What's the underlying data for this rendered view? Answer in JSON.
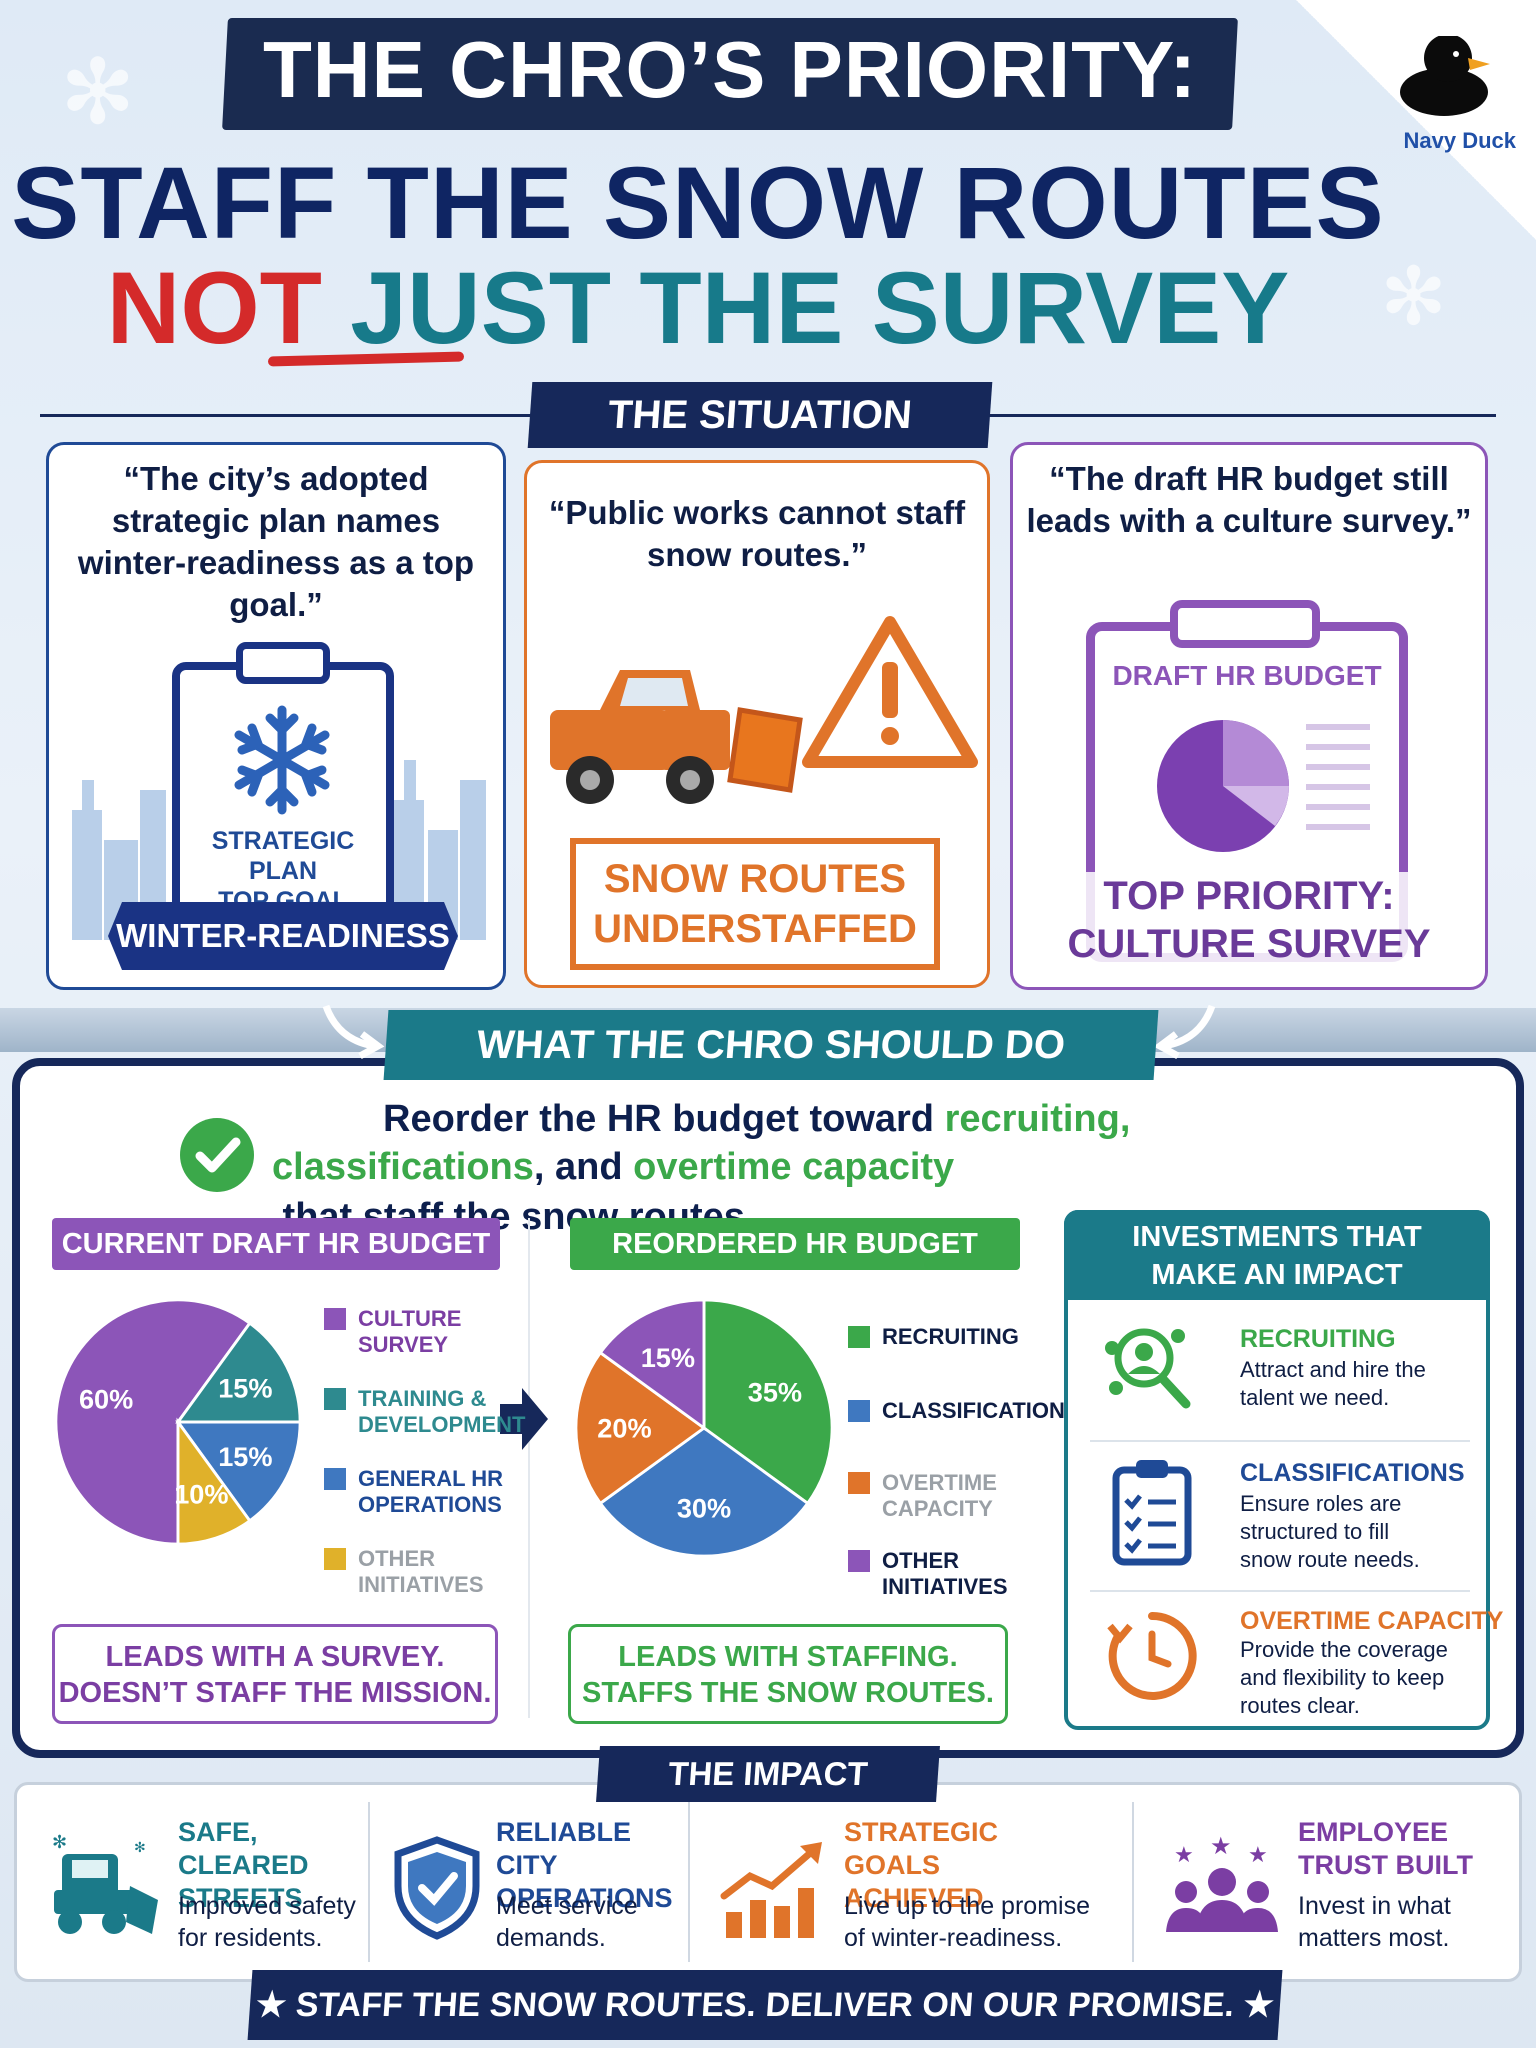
{
  "header": {
    "line1": "THE CHRO’S PRIORITY:",
    "line2": "STAFF THE SNOW ROUTES",
    "line3_not": "NOT",
    "line3_rest": " JUST THE SURVEY",
    "brand": "Navy Duck"
  },
  "situation": {
    "label": "THE SITUATION",
    "card1": {
      "quote": "“The city’s adopted strategic plan names winter-readiness as a top goal.”",
      "clip_line1": "STRATEGIC PLAN",
      "clip_line2": "TOP GOAL",
      "banner": "WINTER-READINESS"
    },
    "card2": {
      "quote": "“Public works cannot staff snow routes.”",
      "box_line1": "SNOW ROUTES",
      "box_line2": "UNDERSTAFFED"
    },
    "card3": {
      "quote": "“The draft HR budget still leads with a culture survey.”",
      "clip_title": "DRAFT HR BUDGET",
      "priority_line1": "TOP PRIORITY:",
      "priority_line2": "CULTURE SURVEY"
    }
  },
  "action": {
    "label": "WHAT THE CHRO SHOULD DO",
    "line1_a": "Reorder the HR budget toward ",
    "line1_b": "recruiting,",
    "line2_a": "classifications",
    "line2_b": ", and ",
    "line2_c": "overtime capacity",
    "line2_d": " that staff the snow routes.",
    "current": {
      "title": "CURRENT DRAFT HR BUDGET",
      "tag_line1": "LEADS WITH A SURVEY.",
      "tag_line2": "DOESN’T STAFF THE MISSION."
    },
    "reordered": {
      "title": "REORDERED HR BUDGET",
      "tag_line1": "LEADS WITH STAFFING.",
      "tag_line2": "STAFFS THE SNOW ROUTES."
    },
    "investments": {
      "title_line1": "INVESTMENTS THAT",
      "title_line2": "MAKE AN IMPACT",
      "items": [
        {
          "title": "RECRUITING",
          "desc": "Attract and hire the talent we need.",
          "color": "#3ba84a",
          "icon": "recruiting-icon"
        },
        {
          "title": "CLASSIFICATIONS",
          "desc": "Ensure roles are structured to fill snow route needs.",
          "color": "#1f4a96",
          "icon": "clipboard-checklist-icon"
        },
        {
          "title": "OVERTIME CAPACITY",
          "desc": "Provide the coverage and flexibility to keep routes clear.",
          "color": "#e0742a",
          "icon": "clock-icon"
        }
      ]
    }
  },
  "chart_data": [
    {
      "type": "pie",
      "title": "CURRENT DRAFT HR BUDGET",
      "categories": [
        "CULTURE SURVEY",
        "TRAINING & DEVELOPMENT",
        "GENERAL HR OPERATIONS",
        "OTHER INITIATIVES"
      ],
      "values": [
        60,
        15,
        15,
        10
      ],
      "value_labels": [
        "60%",
        "15%",
        "15%",
        "10%"
      ],
      "colors": [
        "#8c55b8",
        "#2e8a8f",
        "#3f78c0",
        "#e0b12a"
      ],
      "legend_colors": [
        "#8c55b8",
        "#2e8a8f",
        "#3f78c0",
        "#e0b12a"
      ],
      "legend_text_colors": [
        "#7b3ea3",
        "#2e8a8f",
        "#1f4a96",
        "#9aa0a6"
      ],
      "legend": "right"
    },
    {
      "type": "pie",
      "title": "REORDERED HR BUDGET",
      "categories": [
        "RECRUITING",
        "CLASSIFICATIONS",
        "OVERTIME CAPACITY",
        "OTHER INITIATIVES"
      ],
      "values": [
        35,
        30,
        20,
        15
      ],
      "value_labels": [
        "35%",
        "30%",
        "20%",
        "15%"
      ],
      "colors": [
        "#3ba84a",
        "#3f78c0",
        "#e0742a",
        "#8c55b8"
      ],
      "legend_text_colors": [
        "#0f1e44",
        "#0f1e44",
        "#9aa0a6",
        "#0f1e44"
      ],
      "legend": "right"
    }
  ],
  "impact": {
    "label": "THE IMPACT",
    "items": [
      {
        "title": "SAFE, CLEARED STREETS",
        "desc": "Improved safety for residents.",
        "color": "#1b7a89",
        "icon": "snowplow-icon"
      },
      {
        "title": "RELIABLE CITY OPERATIONS",
        "desc": "Meet service demands.",
        "color": "#1f4a96",
        "icon": "shield-check-icon"
      },
      {
        "title": "STRATEGIC GOALS ACHIEVED",
        "desc": "Live up to the promise of winter-readiness.",
        "color": "#e0742a",
        "icon": "growth-chart-icon"
      },
      {
        "title": "EMPLOYEE TRUST BUILT",
        "desc": "Invest in what matters most.",
        "color": "#7b3ea3",
        "icon": "team-stars-icon"
      }
    ]
  },
  "footer": {
    "text": "STAFF THE SNOW ROUTES. DELIVER ON OUR PROMISE."
  }
}
